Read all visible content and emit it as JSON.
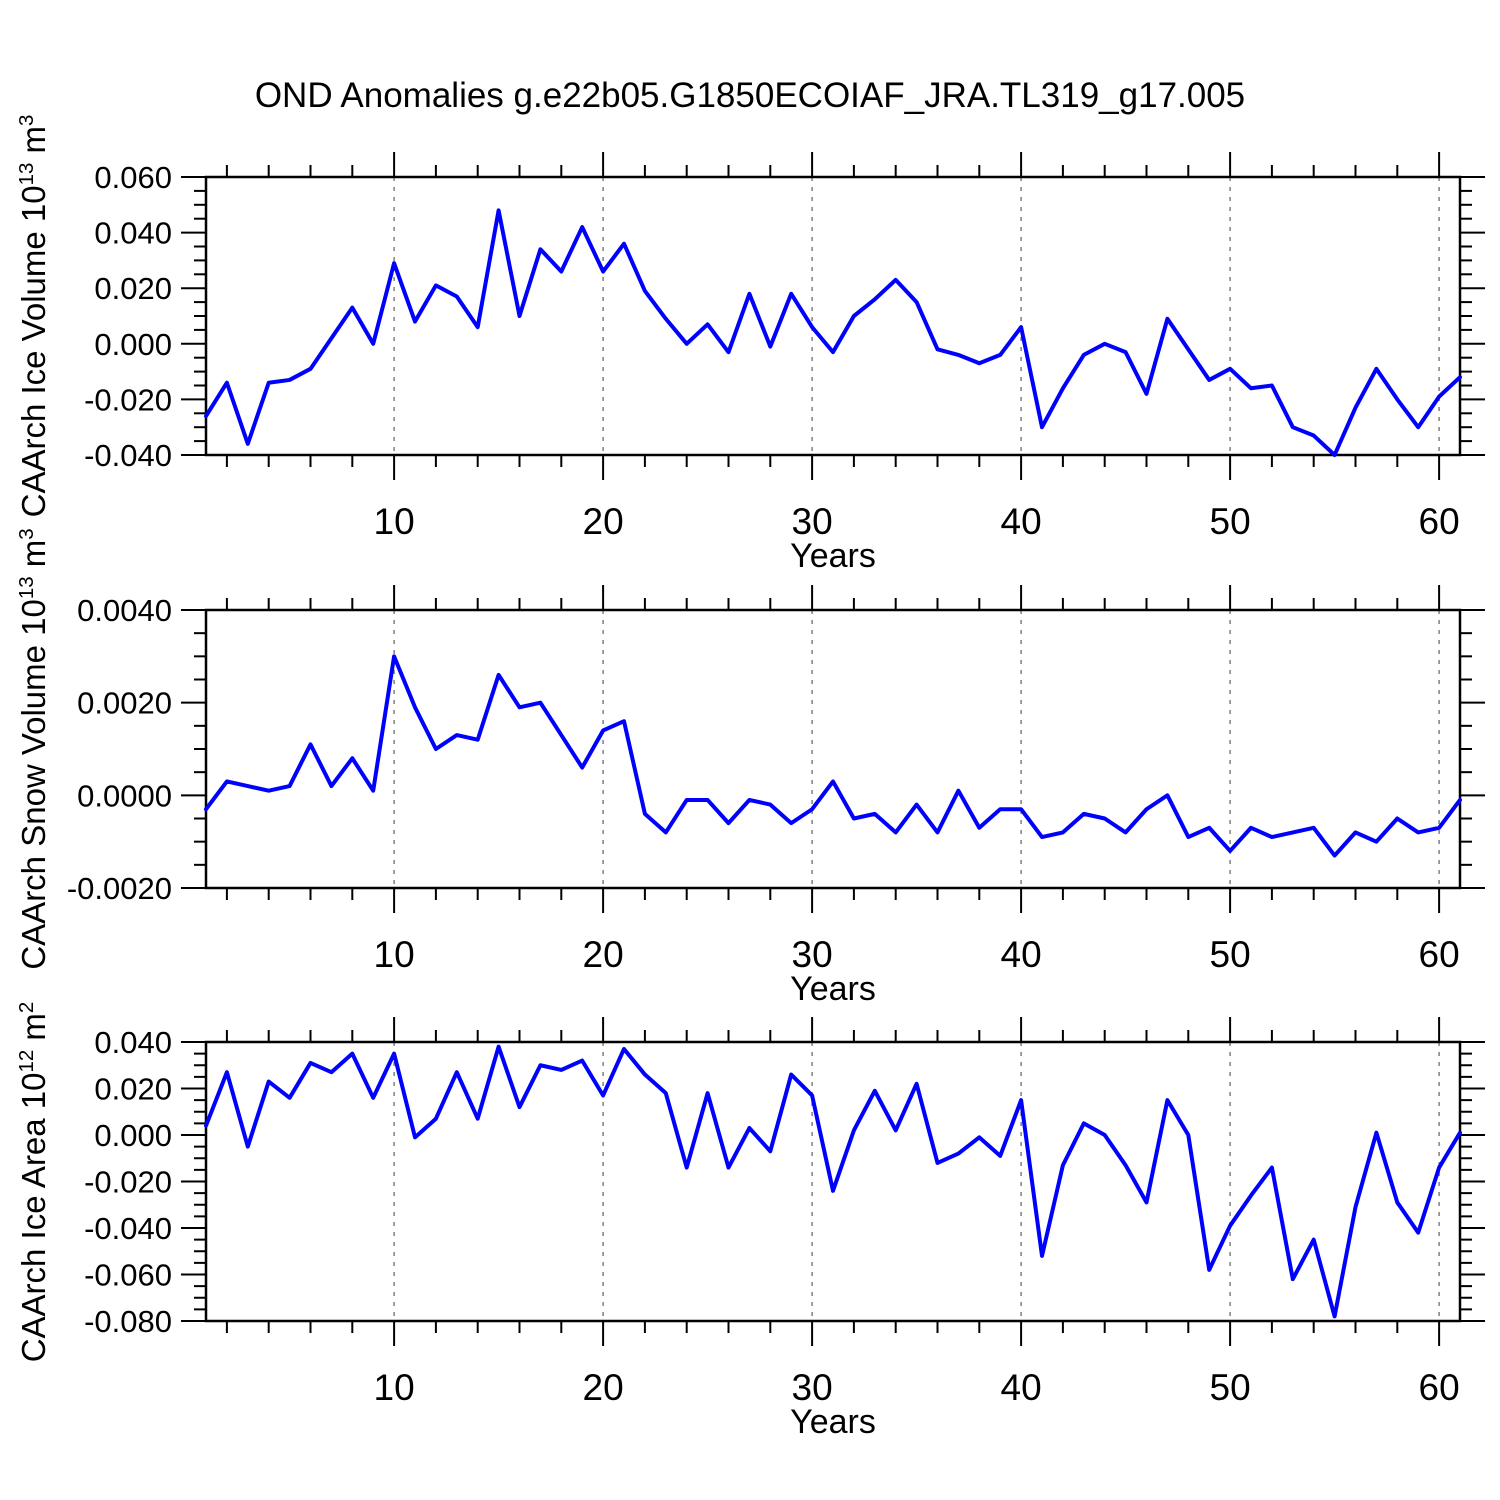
{
  "title": "OND Anomalies g.e22b05.G1850ECOIAF_JRA.TL319_g17.005",
  "colors": {
    "line": "#0000ff",
    "grid": "#7f7f7f",
    "axis": "#000000",
    "background": "#ffffff"
  },
  "chart_data": [
    {
      "type": "line",
      "ylabel_parts": [
        {
          "t": "CAArch Ice Volume 10"
        },
        {
          "t": "13",
          "sup": true
        },
        {
          "t": " m"
        },
        {
          "t": "3",
          "sup": true
        }
      ],
      "xlabel": "Years",
      "xlim": [
        1,
        61
      ],
      "ylim": [
        -0.04,
        0.06
      ],
      "x_major_ticks": [
        10,
        20,
        30,
        40,
        50,
        60
      ],
      "x_minor_step": 2,
      "y_minor_step": 0.005,
      "grid": "vertical dashed lines at decade years",
      "legend": "none",
      "y_ticks": [
        {
          "v": 0.06,
          "label": "0.060"
        },
        {
          "v": 0.04,
          "label": "0.040"
        },
        {
          "v": 0.02,
          "label": "0.020"
        },
        {
          "v": 0.0,
          "label": "0.000"
        },
        {
          "v": -0.02,
          "label": "-0.020"
        },
        {
          "v": -0.04,
          "label": "-0.040"
        }
      ],
      "values": [
        -0.026,
        -0.014,
        -0.036,
        -0.014,
        -0.013,
        -0.009,
        0.002,
        0.013,
        0.0,
        0.029,
        0.008,
        0.021,
        0.017,
        0.006,
        0.048,
        0.01,
        0.034,
        0.026,
        0.042,
        0.026,
        0.036,
        0.019,
        0.009,
        0.0,
        0.007,
        -0.003,
        0.018,
        -0.001,
        0.018,
        0.006,
        -0.003,
        0.01,
        0.016,
        0.023,
        0.015,
        -0.002,
        -0.004,
        -0.007,
        -0.004,
        0.006,
        -0.03,
        -0.016,
        -0.004,
        0.0,
        -0.003,
        -0.018,
        0.009,
        -0.002,
        -0.013,
        -0.009,
        -0.016,
        -0.015,
        -0.03,
        -0.033,
        -0.04,
        -0.023,
        -0.009,
        -0.02,
        -0.03,
        -0.019,
        -0.012
      ]
    },
    {
      "type": "line",
      "ylabel_parts": [
        {
          "t": "CAArch Snow Volume 10"
        },
        {
          "t": "13",
          "sup": true
        },
        {
          "t": " m"
        },
        {
          "t": "3",
          "sup": true
        }
      ],
      "xlabel": "Years",
      "xlim": [
        1,
        61
      ],
      "ylim": [
        -0.002,
        0.004
      ],
      "x_major_ticks": [
        10,
        20,
        30,
        40,
        50,
        60
      ],
      "x_minor_step": 2,
      "y_minor_step": 0.0005,
      "grid": "vertical dashed lines at decade years",
      "legend": "none",
      "y_ticks": [
        {
          "v": 0.004,
          "label": "0.0040"
        },
        {
          "v": 0.002,
          "label": "0.0020"
        },
        {
          "v": 0.0,
          "label": "0.0000"
        },
        {
          "v": -0.002,
          "label": "-0.0020"
        }
      ],
      "values": [
        -0.0003,
        0.0003,
        0.0002,
        0.0001,
        0.0002,
        0.0011,
        0.0002,
        0.0008,
        0.0001,
        0.003,
        0.0019,
        0.001,
        0.0013,
        0.0012,
        0.0026,
        0.0019,
        0.002,
        0.0013,
        0.0006,
        0.0014,
        0.0016,
        -0.0004,
        -0.0008,
        -0.0001,
        -0.0001,
        -0.0006,
        -0.0001,
        -0.0002,
        -0.0006,
        -0.0003,
        0.0003,
        -0.0005,
        -0.0004,
        -0.0008,
        -0.0002,
        -0.0008,
        0.0001,
        -0.0007,
        -0.0003,
        -0.0003,
        -0.0009,
        -0.0008,
        -0.0004,
        -0.0005,
        -0.0008,
        -0.0003,
        0.0,
        -0.0009,
        -0.0007,
        -0.0012,
        -0.0007,
        -0.0009,
        -0.0008,
        -0.0007,
        -0.0013,
        -0.0008,
        -0.001,
        -0.0005,
        -0.0008,
        -0.0007,
        -0.0001
      ]
    },
    {
      "type": "line",
      "ylabel_parts": [
        {
          "t": "CAArch Ice Area 10"
        },
        {
          "t": "12",
          "sup": true
        },
        {
          "t": " m"
        },
        {
          "t": "2",
          "sup": true
        }
      ],
      "xlabel": "Years",
      "xlim": [
        1,
        61
      ],
      "ylim": [
        -0.08,
        0.04
      ],
      "x_major_ticks": [
        10,
        20,
        30,
        40,
        50,
        60
      ],
      "x_minor_step": 2,
      "y_minor_step": 0.005,
      "grid": "vertical dashed lines at decade years",
      "legend": "none",
      "y_ticks": [
        {
          "v": 0.04,
          "label": "0.040"
        },
        {
          "v": 0.02,
          "label": "0.020"
        },
        {
          "v": 0.0,
          "label": "0.000"
        },
        {
          "v": -0.02,
          "label": "-0.020"
        },
        {
          "v": -0.04,
          "label": "-0.040"
        },
        {
          "v": -0.06,
          "label": "-0.060"
        },
        {
          "v": -0.08,
          "label": "-0.080"
        }
      ],
      "values": [
        0.004,
        0.027,
        -0.005,
        0.023,
        0.016,
        0.031,
        0.027,
        0.035,
        0.016,
        0.035,
        -0.001,
        0.007,
        0.027,
        0.007,
        0.038,
        0.012,
        0.03,
        0.028,
        0.032,
        0.017,
        0.037,
        0.026,
        0.018,
        -0.014,
        0.018,
        -0.014,
        0.003,
        -0.007,
        0.026,
        0.017,
        -0.024,
        0.002,
        0.019,
        0.002,
        0.022,
        -0.012,
        -0.008,
        -0.001,
        -0.009,
        0.015,
        -0.052,
        -0.013,
        0.005,
        0.0,
        -0.013,
        -0.029,
        0.015,
        0.0,
        -0.058,
        -0.039,
        -0.026,
        -0.014,
        -0.062,
        -0.045,
        -0.078,
        -0.031,
        0.001,
        -0.029,
        -0.042,
        -0.014,
        0.001
      ]
    }
  ]
}
